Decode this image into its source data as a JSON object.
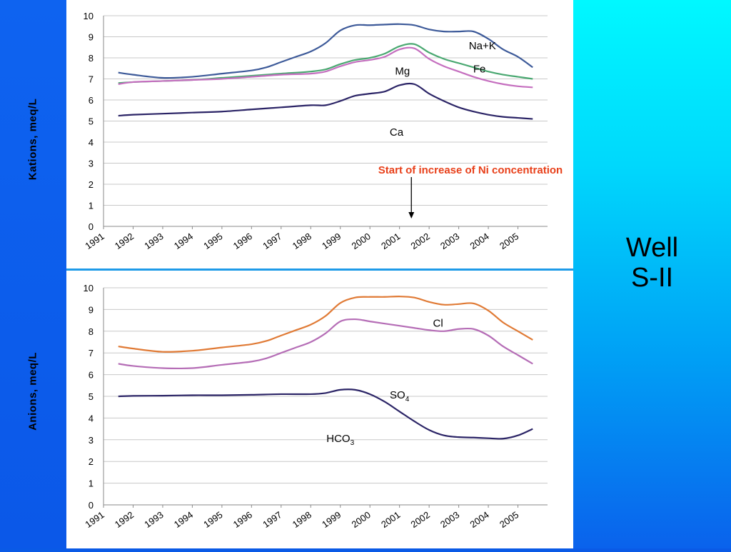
{
  "title_lines": [
    "Well",
    "S-II"
  ],
  "colors": {
    "naK": "#3d5a99",
    "fe": "#4aa871",
    "mg": "#c56fbf",
    "ca": "#2b2466",
    "cl": "#e07a35",
    "cl2": "#b56db6",
    "so4": "#2b2466",
    "annotation": "#e8401a"
  },
  "chart_data": [
    {
      "type": "line",
      "ylabel": "Kations, meq/L",
      "xlabel": "",
      "ylim": [
        0,
        10
      ],
      "yticks": [
        "0",
        "1",
        "2",
        "3",
        "4",
        "5",
        "6",
        "7",
        "8",
        "9",
        "10"
      ],
      "x_tick_labels": [
        "1991",
        "1992",
        "1993",
        "1994",
        "1995",
        "1996",
        "1997",
        "1998",
        "1999",
        "2000",
        "2001",
        "2002",
        "2003",
        "2004",
        "2005"
      ],
      "x_range": [
        1991,
        2006
      ],
      "grid": true,
      "annotation": {
        "text": "Start of increase of Ni concentration",
        "x": 2001.4
      },
      "series": [
        {
          "name": "Na+K",
          "color_key": "naK",
          "x": [
            1991.5,
            1992,
            1993,
            1994,
            1995,
            1996,
            1996.5,
            1997,
            1997.5,
            1998,
            1998.5,
            1999,
            1999.5,
            2000,
            2000.5,
            2001,
            2001.5,
            2002,
            2002.5,
            2003,
            2003.5,
            2004,
            2004.5,
            2005,
            2005.5
          ],
          "y": [
            7.3,
            7.2,
            7.05,
            7.1,
            7.25,
            7.4,
            7.55,
            7.8,
            8.05,
            8.3,
            8.7,
            9.3,
            9.55,
            9.55,
            9.58,
            9.6,
            9.55,
            9.35,
            9.25,
            9.25,
            9.25,
            8.9,
            8.4,
            8.05,
            7.55
          ]
        },
        {
          "name": "Fe",
          "color_key": "fe",
          "x": [
            1991.5,
            1992,
            1993,
            1994,
            1995,
            1996,
            1997,
            1998,
            1998.5,
            1999,
            1999.5,
            2000,
            2000.5,
            2001,
            2001.5,
            2002,
            2002.5,
            2003,
            2003.5,
            2004,
            2004.5,
            2005,
            2005.5
          ],
          "y": [
            6.8,
            6.85,
            6.9,
            6.95,
            7.05,
            7.15,
            7.25,
            7.35,
            7.45,
            7.7,
            7.9,
            8.0,
            8.2,
            8.55,
            8.65,
            8.25,
            7.95,
            7.75,
            7.55,
            7.35,
            7.2,
            7.1,
            7.0
          ]
        },
        {
          "name": "Mg",
          "color_key": "mg",
          "x": [
            1991.5,
            1992,
            1993,
            1994,
            1995,
            1996,
            1997,
            1998,
            1998.5,
            1999,
            1999.5,
            2000,
            2000.5,
            2001,
            2001.5,
            2002,
            2002.5,
            2003,
            2003.5,
            2004,
            2004.5,
            2005,
            2005.5
          ],
          "y": [
            6.75,
            6.85,
            6.9,
            6.95,
            7.0,
            7.1,
            7.2,
            7.25,
            7.35,
            7.6,
            7.8,
            7.9,
            8.05,
            8.4,
            8.45,
            7.95,
            7.6,
            7.35,
            7.1,
            6.9,
            6.75,
            6.65,
            6.6
          ]
        },
        {
          "name": "Ca",
          "color_key": "ca",
          "x": [
            1991.5,
            1992,
            1993,
            1994,
            1995,
            1996,
            1997,
            1998,
            1998.5,
            1999,
            1999.5,
            2000,
            2000.5,
            2001,
            2001.5,
            2002,
            2002.5,
            2003,
            2003.5,
            2004,
            2004.5,
            2005,
            2005.5
          ],
          "y": [
            5.25,
            5.3,
            5.35,
            5.4,
            5.45,
            5.55,
            5.65,
            5.75,
            5.75,
            5.95,
            6.2,
            6.3,
            6.4,
            6.7,
            6.75,
            6.3,
            5.95,
            5.65,
            5.45,
            5.3,
            5.2,
            5.15,
            5.1
          ]
        }
      ],
      "labels": [
        {
          "text": "Na+K",
          "x": 2003.8,
          "y": 8.4,
          "anchor": "middle"
        },
        {
          "text": "Fe",
          "x": 2003.7,
          "y": 7.3,
          "anchor": "middle"
        },
        {
          "text": "Mg",
          "x": 2001.1,
          "y": 7.2,
          "anchor": "middle"
        },
        {
          "text": "Ca",
          "x": 2000.9,
          "y": 4.3,
          "anchor": "middle"
        }
      ]
    },
    {
      "type": "line",
      "ylabel": "Anions, meq/L",
      "xlabel": "",
      "ylim": [
        0,
        10
      ],
      "yticks": [
        "0",
        "1",
        "2",
        "3",
        "4",
        "5",
        "6",
        "7",
        "8",
        "9",
        "10"
      ],
      "x_tick_labels": [
        "1991",
        "1992",
        "1993",
        "1994",
        "1995",
        "1996",
        "1997",
        "1998",
        "1999",
        "2000",
        "2001",
        "2002",
        "2003",
        "2004",
        "2005"
      ],
      "x_range": [
        1991,
        2006
      ],
      "grid": true,
      "series": [
        {
          "color_key": "cl",
          "x": [
            1991.5,
            1992,
            1993,
            1994,
            1995,
            1996,
            1996.5,
            1997,
            1997.5,
            1998,
            1998.5,
            1999,
            1999.5,
            2000,
            2000.5,
            2001,
            2001.5,
            2002,
            2002.5,
            2003,
            2003.5,
            2004,
            2004.5,
            2005,
            2005.5
          ],
          "y": [
            7.3,
            7.2,
            7.05,
            7.1,
            7.25,
            7.4,
            7.55,
            7.8,
            8.05,
            8.3,
            8.7,
            9.3,
            9.55,
            9.58,
            9.58,
            9.6,
            9.55,
            9.35,
            9.22,
            9.25,
            9.28,
            8.95,
            8.4,
            8.0,
            7.6
          ]
        },
        {
          "color_key": "cl2",
          "x": [
            1991.5,
            1992,
            1993,
            1994,
            1995,
            1996,
            1996.5,
            1997,
            1997.5,
            1998,
            1998.5,
            1999,
            1999.5,
            2000,
            2000.5,
            2001,
            2001.5,
            2002,
            2002.5,
            2003,
            2003.5,
            2004,
            2004.5,
            2005,
            2005.5
          ],
          "y": [
            6.5,
            6.4,
            6.3,
            6.3,
            6.45,
            6.6,
            6.75,
            7.0,
            7.25,
            7.5,
            7.9,
            8.45,
            8.55,
            8.45,
            8.35,
            8.25,
            8.15,
            8.05,
            8.0,
            8.1,
            8.1,
            7.8,
            7.3,
            6.9,
            6.5
          ]
        },
        {
          "color_key": "so4",
          "x": [
            1991.5,
            1992,
            1993,
            1994,
            1995,
            1996,
            1997,
            1998,
            1998.5,
            1999,
            1999.5,
            2000,
            2000.5,
            2001,
            2001.5,
            2002,
            2002.5,
            2003,
            2003.5,
            2004,
            2004.5,
            2005,
            2005.5
          ],
          "y": [
            5.0,
            5.02,
            5.03,
            5.05,
            5.05,
            5.07,
            5.1,
            5.1,
            5.15,
            5.3,
            5.3,
            5.1,
            4.75,
            4.3,
            3.85,
            3.45,
            3.2,
            3.12,
            3.1,
            3.07,
            3.05,
            3.2,
            3.5
          ]
        }
      ],
      "labels": [
        {
          "text": "Cl",
          "x": 2002.3,
          "y": 8.2,
          "anchor": "middle"
        },
        {
          "text": "SO",
          "sub": "4",
          "x": 2001.0,
          "y": 4.9,
          "anchor": "middle"
        },
        {
          "text": "HCO",
          "sub": "3",
          "x": 1999.0,
          "y": 2.9,
          "anchor": "middle"
        }
      ]
    }
  ]
}
